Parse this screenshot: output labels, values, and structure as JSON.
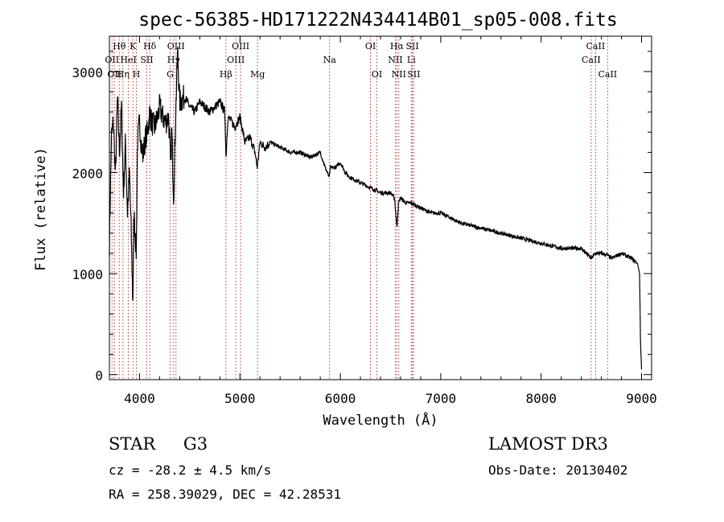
{
  "chart_data": {
    "type": "line",
    "title": "spec-56385-HD171222N434414B01_sp05-008.fits",
    "xlabel": "Wavelength (Å)",
    "ylabel": "Flux (relative)",
    "xlim": [
      3700,
      9100
    ],
    "ylim": [
      -50,
      3350
    ],
    "xticks": [
      4000,
      5000,
      6000,
      7000,
      8000,
      9000
    ],
    "yticks": [
      0,
      1000,
      2000,
      3000
    ],
    "grid": false,
    "series": [
      {
        "name": "flux",
        "x": [
          3700,
          3720,
          3740,
          3760,
          3780,
          3800,
          3820,
          3840,
          3860,
          3880,
          3900,
          3920,
          3933,
          3945,
          3968,
          3980,
          4000,
          4030,
          4060,
          4080,
          4102,
          4120,
          4150,
          4180,
          4200,
          4230,
          4260,
          4290,
          4310,
          4320,
          4340,
          4360,
          4380,
          4400,
          4450,
          4500,
          4550,
          4600,
          4650,
          4700,
          4750,
          4800,
          4850,
          4861,
          4880,
          4920,
          4950,
          5000,
          5050,
          5100,
          5150,
          5172,
          5200,
          5250,
          5300,
          5400,
          5500,
          5600,
          5700,
          5800,
          5850,
          5890,
          5900,
          5950,
          6000,
          6050,
          6100,
          6200,
          6300,
          6400,
          6500,
          6540,
          6563,
          6580,
          6600,
          6650,
          6700,
          6800,
          6900,
          7000,
          7200,
          7400,
          7600,
          7800,
          8000,
          8200,
          8400,
          8498,
          8542,
          8600,
          8662,
          8700,
          8800,
          8900,
          8960,
          8980,
          8990,
          9000
        ],
        "values": [
          1300,
          2350,
          2500,
          1950,
          2750,
          2200,
          2650,
          1800,
          2300,
          1600,
          2000,
          1300,
          700,
          1600,
          1200,
          2300,
          2500,
          2150,
          2350,
          2400,
          2600,
          2500,
          2450,
          2550,
          2650,
          2550,
          2500,
          2550,
          2050,
          2450,
          1750,
          2600,
          3200,
          2700,
          2750,
          2650,
          2600,
          2700,
          2650,
          2600,
          2650,
          2700,
          2600,
          2150,
          2550,
          2500,
          2450,
          2550,
          2300,
          2350,
          2200,
          2050,
          2300,
          2250,
          2300,
          2250,
          2200,
          2200,
          2150,
          2200,
          2050,
          1950,
          2050,
          2050,
          2100,
          2000,
          1950,
          1900,
          1850,
          1800,
          1800,
          1750,
          1450,
          1700,
          1750,
          1700,
          1700,
          1650,
          1600,
          1600,
          1500,
          1450,
          1400,
          1350,
          1300,
          1250,
          1250,
          1150,
          1200,
          1200,
          1180,
          1150,
          1200,
          1150,
          1100,
          1000,
          300,
          50
        ]
      }
    ],
    "line_markers": [
      {
        "wavelength": 3726,
        "label": "OII",
        "row": 2
      },
      {
        "wavelength": 3750,
        "label": "OII",
        "row": 3
      },
      {
        "wavelength": 3798,
        "label": "Hθ",
        "row": 1
      },
      {
        "wavelength": 3835,
        "label": "Hη",
        "row": 3
      },
      {
        "wavelength": 3889,
        "label": "HeI",
        "row": 2
      },
      {
        "wavelength": 3934,
        "label": "K",
        "row": 1
      },
      {
        "wavelength": 3969,
        "label": "H",
        "row": 3
      },
      {
        "wavelength": 4072,
        "label": "SII",
        "row": 2
      },
      {
        "wavelength": 4102,
        "label": "Hδ",
        "row": 1
      },
      {
        "wavelength": 4305,
        "label": "G",
        "row": 3
      },
      {
        "wavelength": 4340,
        "label": "Hγ",
        "row": 2
      },
      {
        "wavelength": 4363,
        "label": "OIII",
        "row": 1
      },
      {
        "wavelength": 4861,
        "label": "Hβ",
        "row": 3
      },
      {
        "wavelength": 4959,
        "label": "OIII",
        "row": 2
      },
      {
        "wavelength": 5007,
        "label": "OIII",
        "row": 1
      },
      {
        "wavelength": 5175,
        "label": "Mg",
        "row": 3
      },
      {
        "wavelength": 5893,
        "label": "Na",
        "row": 2
      },
      {
        "wavelength": 6300,
        "label": "OI",
        "row": 1
      },
      {
        "wavelength": 6364,
        "label": "OI",
        "row": 3
      },
      {
        "wavelength": 6548,
        "label": "NII",
        "row": 2
      },
      {
        "wavelength": 6563,
        "label": "Hα",
        "row": 1
      },
      {
        "wavelength": 6583,
        "label": "NII",
        "row": 3
      },
      {
        "wavelength": 6707,
        "label": "Li",
        "row": 2
      },
      {
        "wavelength": 6717,
        "label": "SII",
        "row": 1
      },
      {
        "wavelength": 6731,
        "label": "SII",
        "row": 3
      },
      {
        "wavelength": 8498,
        "label": "CaII",
        "row": 2
      },
      {
        "wavelength": 8542,
        "label": "CaII",
        "row": 1
      },
      {
        "wavelength": 8662,
        "label": "CaII",
        "row": 3
      }
    ]
  },
  "info": {
    "class": "STAR",
    "subclass": "G3",
    "cz": "cz = -28.2 ± 4.5 km/s",
    "coords": "RA = 258.39029, DEC =  42.28531",
    "survey": "LAMOST DR3",
    "obs_date": "Obs-Date: 20130402"
  },
  "colors": {
    "axis": "#000000",
    "line": "#000000",
    "marker": "#b22222"
  }
}
